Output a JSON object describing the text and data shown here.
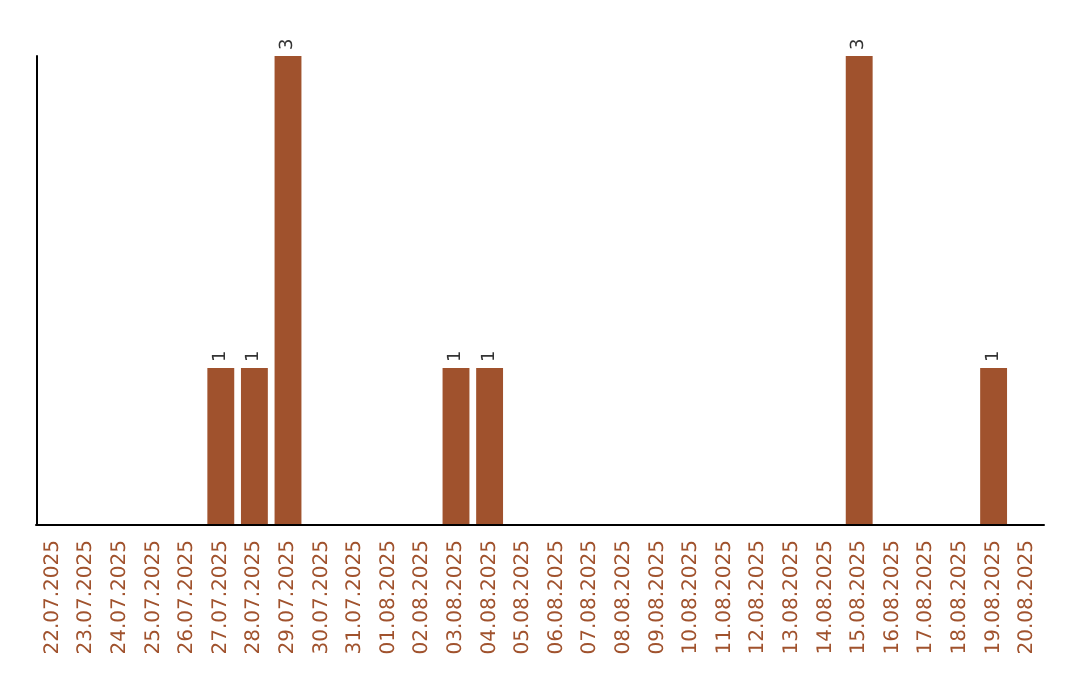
{
  "chart_data": {
    "type": "bar",
    "categories": [
      "22.07.2025",
      "23.07.2025",
      "24.07.2025",
      "25.07.2025",
      "26.07.2025",
      "27.07.2025",
      "28.07.2025",
      "29.07.2025",
      "30.07.2025",
      "31.07.2025",
      "01.08.2025",
      "02.08.2025",
      "03.08.2025",
      "04.08.2025",
      "05.08.2025",
      "06.08.2025",
      "07.08.2025",
      "08.08.2025",
      "09.08.2025",
      "10.08.2025",
      "11.08.2025",
      "12.08.2025",
      "13.08.2025",
      "14.08.2025",
      "15.08.2025",
      "16.08.2025",
      "17.08.2025",
      "18.08.2025",
      "19.08.2025",
      "20.08.2025"
    ],
    "values": [
      0,
      0,
      0,
      0,
      0,
      1,
      1,
      3,
      0,
      0,
      0,
      0,
      1,
      1,
      0,
      0,
      0,
      0,
      0,
      0,
      0,
      0,
      0,
      0,
      3,
      0,
      0,
      0,
      1,
      0
    ],
    "value_labels": [
      null,
      null,
      null,
      null,
      null,
      "1",
      "1",
      "3",
      null,
      null,
      null,
      null,
      "1",
      "1",
      null,
      null,
      null,
      null,
      null,
      null,
      null,
      null,
      null,
      null,
      "3",
      null,
      null,
      null,
      "1",
      null
    ],
    "color": "#a0522d",
    "ylim": [
      0,
      3
    ],
    "tick_labels": "x"
  }
}
